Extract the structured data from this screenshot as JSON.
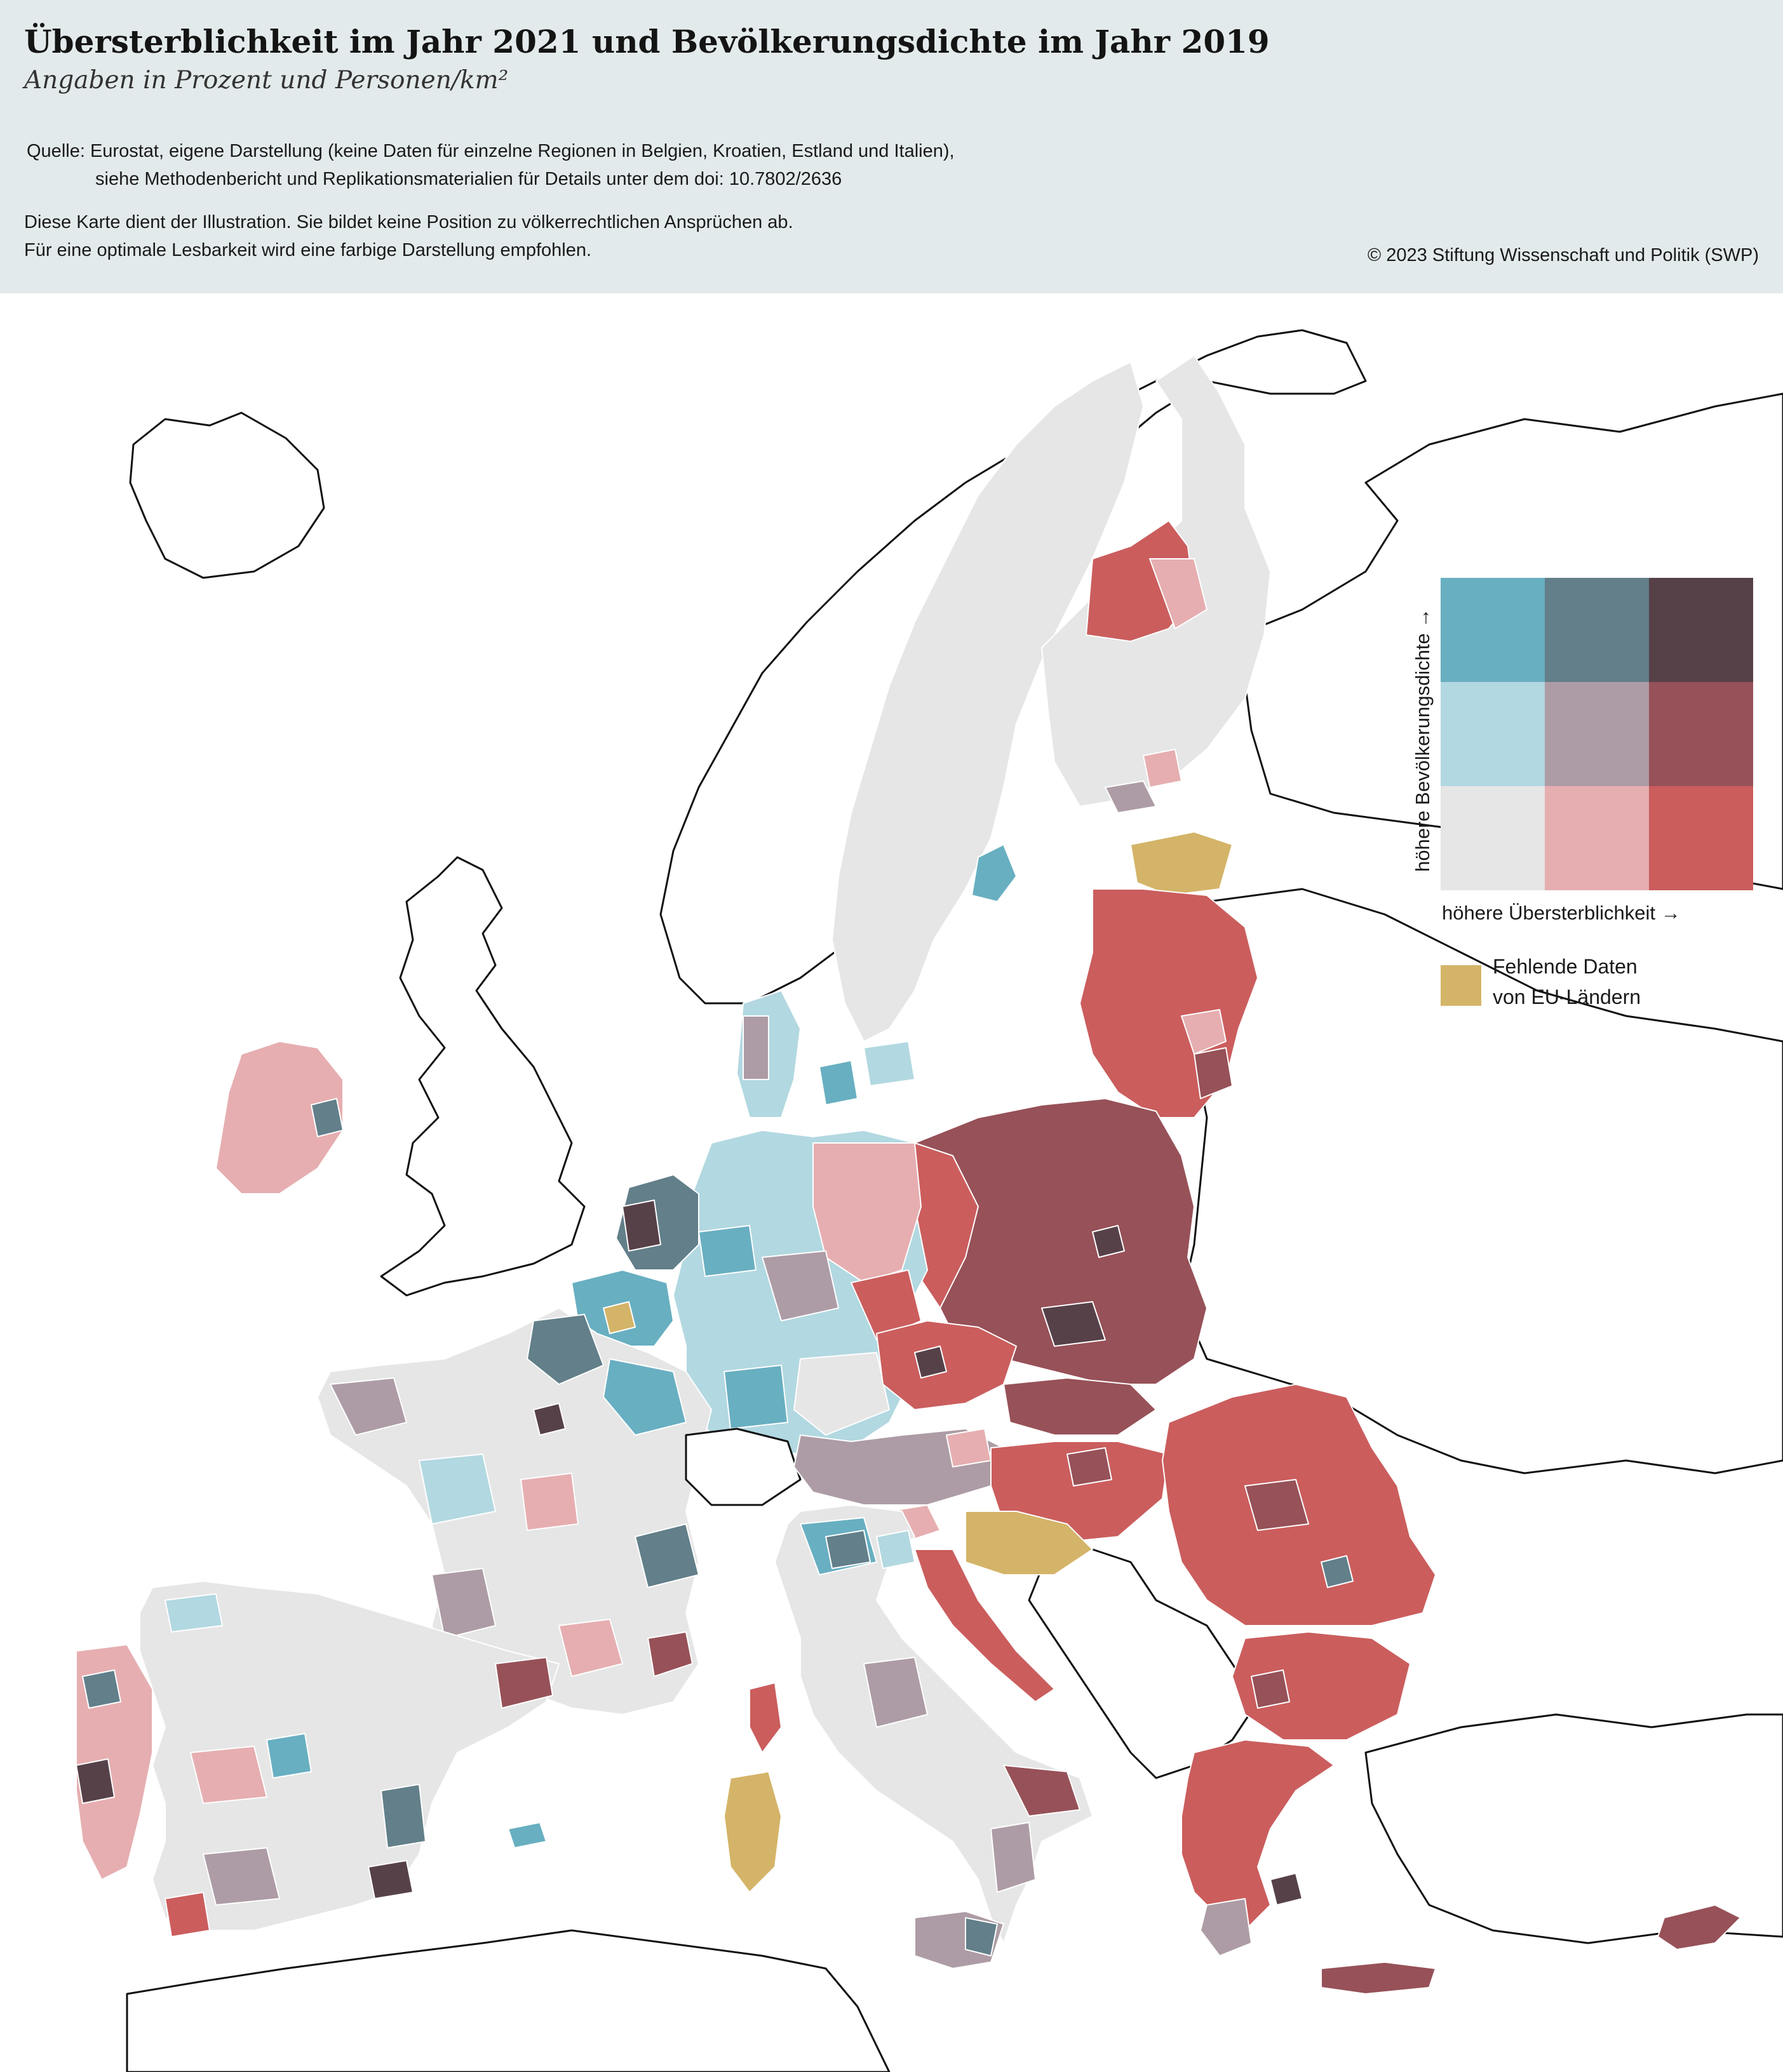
{
  "header": {
    "title": "Übersterblichkeit im Jahr 2021 und Bevölkerungsdichte im Jahr 2019",
    "subtitle": "Angaben in Prozent und Personen/km²",
    "source_line1": "Quelle: Eurostat, eigene Darstellung (keine Daten für einzelne Regionen in Belgien, Kroatien, Estland und Italien),",
    "source_line2": "siehe Methodenbericht und Replikationsmaterialien für Details unter dem doi: 10.7802/2636",
    "note_line1": "Diese Karte dient der Illustration. Sie bildet keine Position zu völkerrechtlichen Ansprüchen ab.",
    "note_line2": "Für eine optimale Lesbarkeit wird eine farbige Darstellung empfohlen.",
    "copyright": "© 2023 Stiftung Wissenschaft und Politik (SWP)"
  },
  "legend": {
    "y_axis_label": "höhere Bevölkerungsdichte →",
    "x_axis_label": "höhere Übersterblichkeit →",
    "bivariate_colors": [
      [
        "#68afc1",
        "#627f8a",
        "#574149"
      ],
      [
        "#b2d8e1",
        "#ad9ca5",
        "#975158"
      ],
      [
        "#e6e6e6",
        "#e6aeb0",
        "#cb5d5d"
      ]
    ],
    "missing_color": "#d4b468",
    "missing_label_line1": "Fehlende Daten",
    "missing_label_line2": "von EU-Ländern"
  },
  "map": {
    "ocean": "#ffffff",
    "non_eu_fill": "#ffffff",
    "outline": "#111111",
    "region_border": "#ffffff"
  }
}
